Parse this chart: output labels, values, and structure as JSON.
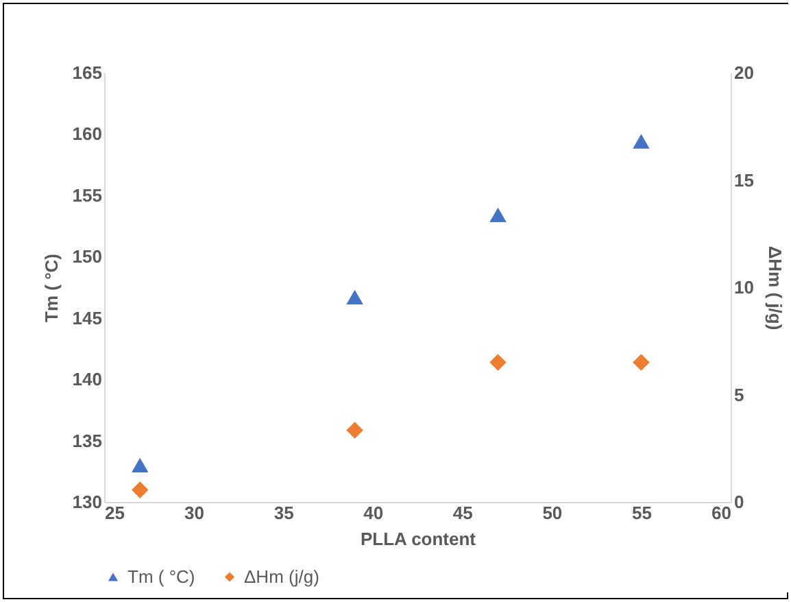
{
  "chart_data": {
    "type": "scatter",
    "xlabel": "PLLA content",
    "ylabel": "Tm ( °C)",
    "y2label": "ΔHm ( j/g)",
    "x": [
      27,
      39,
      47,
      55
    ],
    "series": [
      {
        "name": "Tm ( °C)",
        "color": "#4472c4",
        "marker": "triangle",
        "values": [
          133.0,
          146.7,
          153.4,
          159.4
        ]
      },
      {
        "name": "ΔHm (j/g)",
        "color": "#ed7d31",
        "marker": "diamond",
        "axis": "y2",
        "values": [
          0.56,
          3.34,
          6.5,
          6.5
        ]
      }
    ],
    "xlim": [
      25,
      60
    ],
    "xticks": [
      25,
      30,
      35,
      40,
      45,
      50,
      55,
      60
    ],
    "ylim": [
      130,
      165
    ],
    "yticks": [
      130,
      135,
      140,
      145,
      150,
      155,
      160,
      165
    ],
    "y2lim": [
      0,
      20
    ],
    "y2ticks": [
      0,
      5,
      10,
      15,
      20
    ],
    "grid": false,
    "legend": "bottom"
  }
}
